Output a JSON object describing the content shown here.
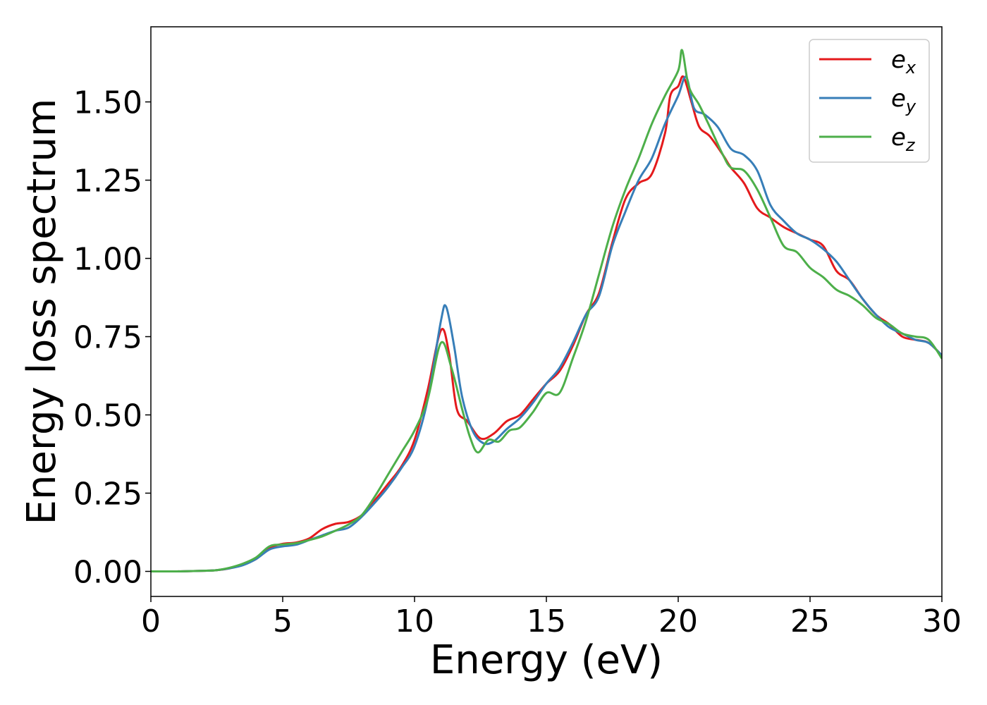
{
  "chart_data": {
    "type": "line",
    "title": "",
    "xlabel": "Energy (eV)",
    "ylabel": "Energy loss spectrum",
    "xlim": [
      0,
      30
    ],
    "ylim": [
      -0.08,
      1.74
    ],
    "xticks": [
      0,
      5,
      10,
      15,
      20,
      25,
      30
    ],
    "xtick_labels": [
      "0",
      "5",
      "10",
      "15",
      "20",
      "25",
      "30"
    ],
    "yticks": [
      0,
      0.25,
      0.5,
      0.75,
      1.0,
      1.25,
      1.5
    ],
    "ytick_labels": [
      "0.00",
      "0.25",
      "0.50",
      "0.75",
      "1.00",
      "1.25",
      "1.50"
    ],
    "grid": false,
    "legend_position": "top-right",
    "series": [
      {
        "name": "e",
        "subscript": "x",
        "color": "#e41a1c",
        "points": [
          [
            0,
            0
          ],
          [
            1,
            0
          ],
          [
            2,
            0.002
          ],
          [
            2.5,
            0.004
          ],
          [
            3,
            0.01
          ],
          [
            3.5,
            0.022
          ],
          [
            4,
            0.04
          ],
          [
            4.5,
            0.075
          ],
          [
            5,
            0.088
          ],
          [
            5.5,
            0.092
          ],
          [
            6,
            0.105
          ],
          [
            6.5,
            0.135
          ],
          [
            7,
            0.152
          ],
          [
            7.5,
            0.158
          ],
          [
            8,
            0.18
          ],
          [
            8.5,
            0.228
          ],
          [
            9,
            0.28
          ],
          [
            9.5,
            0.335
          ],
          [
            10,
            0.42
          ],
          [
            10.5,
            0.58
          ],
          [
            11,
            0.77
          ],
          [
            11.3,
            0.7
          ],
          [
            11.6,
            0.52
          ],
          [
            12,
            0.48
          ],
          [
            12.5,
            0.425
          ],
          [
            13,
            0.44
          ],
          [
            13.5,
            0.48
          ],
          [
            14,
            0.5
          ],
          [
            14.5,
            0.55
          ],
          [
            15,
            0.6
          ],
          [
            15.5,
            0.64
          ],
          [
            16,
            0.72
          ],
          [
            16.5,
            0.82
          ],
          [
            17,
            0.89
          ],
          [
            17.5,
            1.05
          ],
          [
            18,
            1.19
          ],
          [
            18.5,
            1.24
          ],
          [
            19,
            1.27
          ],
          [
            19.5,
            1.4
          ],
          [
            19.7,
            1.52
          ],
          [
            20,
            1.55
          ],
          [
            20.2,
            1.58
          ],
          [
            20.5,
            1.5
          ],
          [
            20.8,
            1.42
          ],
          [
            21.2,
            1.39
          ],
          [
            21.7,
            1.33
          ],
          [
            22,
            1.29
          ],
          [
            22.5,
            1.24
          ],
          [
            23,
            1.16
          ],
          [
            23.5,
            1.13
          ],
          [
            24,
            1.1
          ],
          [
            24.5,
            1.08
          ],
          [
            25,
            1.06
          ],
          [
            25.5,
            1.04
          ],
          [
            26,
            0.96
          ],
          [
            26.5,
            0.93
          ],
          [
            27,
            0.87
          ],
          [
            27.5,
            0.82
          ],
          [
            28,
            0.79
          ],
          [
            28.5,
            0.75
          ],
          [
            29,
            0.74
          ],
          [
            29.5,
            0.73
          ],
          [
            30,
            0.69
          ]
        ]
      },
      {
        "name": "e",
        "subscript": "y",
        "color": "#377eb8",
        "points": [
          [
            0,
            0
          ],
          [
            1,
            0
          ],
          [
            2,
            0.002
          ],
          [
            2.5,
            0.004
          ],
          [
            3,
            0.01
          ],
          [
            3.5,
            0.02
          ],
          [
            4,
            0.04
          ],
          [
            4.5,
            0.07
          ],
          [
            5,
            0.08
          ],
          [
            5.5,
            0.085
          ],
          [
            6,
            0.1
          ],
          [
            6.5,
            0.115
          ],
          [
            7,
            0.13
          ],
          [
            7.5,
            0.14
          ],
          [
            8,
            0.175
          ],
          [
            8.5,
            0.22
          ],
          [
            9,
            0.27
          ],
          [
            9.5,
            0.33
          ],
          [
            10,
            0.4
          ],
          [
            10.5,
            0.55
          ],
          [
            11,
            0.8
          ],
          [
            11.2,
            0.845
          ],
          [
            11.5,
            0.72
          ],
          [
            11.8,
            0.56
          ],
          [
            12.2,
            0.45
          ],
          [
            12.6,
            0.41
          ],
          [
            13,
            0.415
          ],
          [
            13.5,
            0.455
          ],
          [
            14,
            0.49
          ],
          [
            14.5,
            0.54
          ],
          [
            15,
            0.6
          ],
          [
            15.5,
            0.65
          ],
          [
            16,
            0.73
          ],
          [
            16.5,
            0.82
          ],
          [
            17,
            0.88
          ],
          [
            17.5,
            1.04
          ],
          [
            18,
            1.15
          ],
          [
            18.5,
            1.25
          ],
          [
            19,
            1.32
          ],
          [
            19.5,
            1.43
          ],
          [
            20,
            1.52
          ],
          [
            20.3,
            1.58
          ],
          [
            20.6,
            1.48
          ],
          [
            21,
            1.46
          ],
          [
            21.5,
            1.42
          ],
          [
            22,
            1.35
          ],
          [
            22.5,
            1.33
          ],
          [
            23,
            1.28
          ],
          [
            23.5,
            1.17
          ],
          [
            24,
            1.12
          ],
          [
            24.5,
            1.08
          ],
          [
            25,
            1.06
          ],
          [
            25.5,
            1.03
          ],
          [
            26,
            0.99
          ],
          [
            26.5,
            0.93
          ],
          [
            27,
            0.87
          ],
          [
            27.5,
            0.82
          ],
          [
            28,
            0.78
          ],
          [
            28.5,
            0.76
          ],
          [
            29,
            0.74
          ],
          [
            29.5,
            0.73
          ],
          [
            30,
            0.69
          ]
        ]
      },
      {
        "name": "e",
        "subscript": "z",
        "color": "#4daf4a",
        "points": [
          [
            0,
            0
          ],
          [
            1,
            0
          ],
          [
            2,
            0.002
          ],
          [
            2.5,
            0.004
          ],
          [
            3,
            0.012
          ],
          [
            3.5,
            0.025
          ],
          [
            4,
            0.045
          ],
          [
            4.5,
            0.08
          ],
          [
            5,
            0.086
          ],
          [
            5.5,
            0.09
          ],
          [
            6,
            0.1
          ],
          [
            6.5,
            0.112
          ],
          [
            7,
            0.13
          ],
          [
            7.5,
            0.15
          ],
          [
            8,
            0.18
          ],
          [
            8.5,
            0.24
          ],
          [
            9,
            0.31
          ],
          [
            9.5,
            0.38
          ],
          [
            10,
            0.45
          ],
          [
            10.5,
            0.55
          ],
          [
            11,
            0.73
          ],
          [
            11.4,
            0.65
          ],
          [
            11.8,
            0.52
          ],
          [
            12.1,
            0.43
          ],
          [
            12.4,
            0.38
          ],
          [
            12.8,
            0.42
          ],
          [
            13.2,
            0.415
          ],
          [
            13.6,
            0.45
          ],
          [
            14,
            0.46
          ],
          [
            14.5,
            0.51
          ],
          [
            15,
            0.57
          ],
          [
            15.5,
            0.57
          ],
          [
            16,
            0.68
          ],
          [
            16.5,
            0.8
          ],
          [
            17,
            0.95
          ],
          [
            17.5,
            1.1
          ],
          [
            18,
            1.22
          ],
          [
            18.5,
            1.32
          ],
          [
            19,
            1.43
          ],
          [
            19.5,
            1.52
          ],
          [
            20,
            1.6
          ],
          [
            20.15,
            1.665
          ],
          [
            20.4,
            1.55
          ],
          [
            20.8,
            1.49
          ],
          [
            21.2,
            1.42
          ],
          [
            21.7,
            1.33
          ],
          [
            22,
            1.29
          ],
          [
            22.5,
            1.28
          ],
          [
            23,
            1.22
          ],
          [
            23.5,
            1.13
          ],
          [
            24,
            1.04
          ],
          [
            24.5,
            1.02
          ],
          [
            25,
            0.97
          ],
          [
            25.5,
            0.94
          ],
          [
            26,
            0.9
          ],
          [
            26.5,
            0.88
          ],
          [
            27,
            0.85
          ],
          [
            27.5,
            0.81
          ],
          [
            28,
            0.79
          ],
          [
            28.5,
            0.76
          ],
          [
            29,
            0.75
          ],
          [
            29.5,
            0.74
          ],
          [
            30,
            0.68
          ]
        ]
      }
    ]
  }
}
